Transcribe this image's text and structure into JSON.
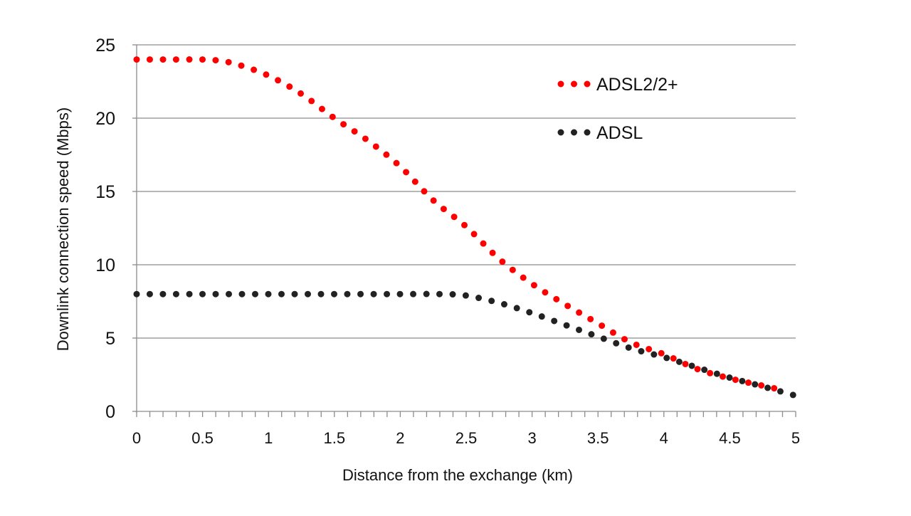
{
  "chart_data": {
    "type": "line",
    "title": "",
    "xlabel": "Distance from the exchange (km)",
    "ylabel": "Downlink connection speed (Mbps)",
    "xlim": [
      0,
      5
    ],
    "ylim": [
      0,
      25
    ],
    "xticks": [
      "0",
      "0.5",
      "1",
      "1.5",
      "2",
      "2.5",
      "3",
      "3.5",
      "4",
      "4.5",
      "5"
    ],
    "yticks": [
      "0",
      "5",
      "10",
      "15",
      "20",
      "25"
    ],
    "grid": "horizontal",
    "legend_position": "top-right",
    "series": [
      {
        "name": "ADSL2/2+",
        "color": "#ff0000",
        "style": "dotted",
        "x": [
          0,
          0.25,
          0.5,
          0.6,
          0.75,
          1,
          1.25,
          1.5,
          1.75,
          2,
          2.25,
          2.5,
          2.75,
          3,
          3.25,
          3.5,
          3.75,
          4,
          4.25,
          4.5,
          4.75,
          4.9
        ],
        "y": [
          24,
          24,
          24,
          23.95,
          23.7,
          22.9,
          21.65,
          20.0,
          18.5,
          16.7,
          14.4,
          12.6,
          10.4,
          8.7,
          7.3,
          6.0,
          4.7,
          3.9,
          2.9,
          2.25,
          1.75,
          1.45
        ]
      },
      {
        "name": "ADSL",
        "color": "#222222",
        "style": "dotted",
        "x": [
          0,
          0.5,
          1,
          1.5,
          2,
          2.3,
          2.5,
          2.75,
          3,
          3.25,
          3.5,
          3.75,
          4,
          4.25,
          4.5,
          4.75,
          5
        ],
        "y": [
          8,
          8,
          8,
          8,
          8,
          8,
          7.9,
          7.4,
          6.7,
          5.9,
          5.1,
          4.3,
          3.7,
          3.0,
          2.3,
          1.7,
          1.07
        ]
      }
    ]
  }
}
